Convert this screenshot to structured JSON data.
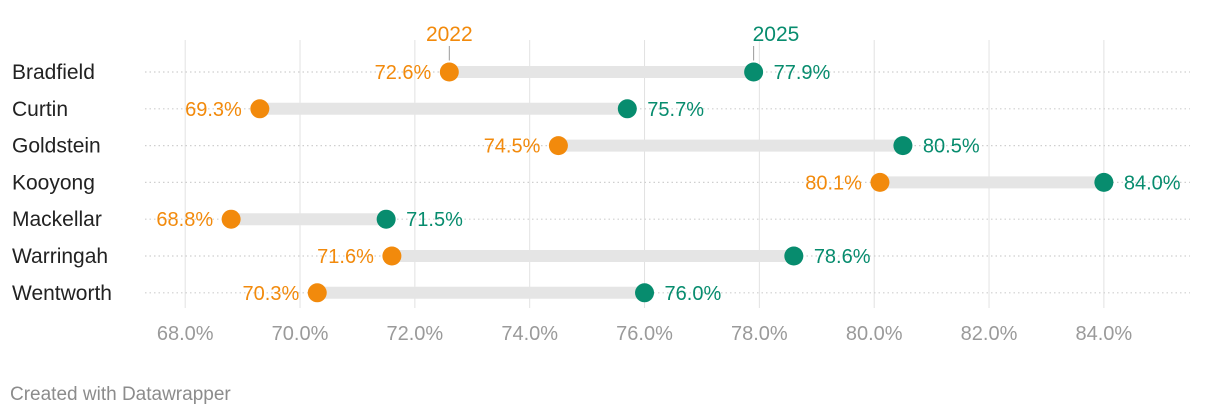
{
  "chart_data": {
    "type": "dot-range",
    "title": "",
    "series": [
      {
        "name": "2022",
        "color": "#f28a0c"
      },
      {
        "name": "2025",
        "color": "#078c6e"
      }
    ],
    "categories": [
      "Bradfield",
      "Curtin",
      "Goldstein",
      "Kooyong",
      "Mackellar",
      "Warringah",
      "Wentworth"
    ],
    "values_2022": [
      72.6,
      69.3,
      74.5,
      80.1,
      68.8,
      71.6,
      70.3
    ],
    "values_2025": [
      77.9,
      75.7,
      80.5,
      84.0,
      71.5,
      78.6,
      76.0
    ],
    "labels_2022": [
      "72.6%",
      "69.3%",
      "74.5%",
      "80.1%",
      "68.8%",
      "71.6%",
      "70.3%"
    ],
    "labels_2025": [
      "77.9%",
      "75.7%",
      "80.5%",
      "84.0%",
      "71.5%",
      "78.6%",
      "76.0%"
    ],
    "x_ticks": [
      68,
      70,
      72,
      74,
      76,
      78,
      80,
      82,
      84
    ],
    "x_tick_labels": [
      "68.0%",
      "70.0%",
      "72.0%",
      "74.0%",
      "76.0%",
      "78.0%",
      "80.0%",
      "82.0%",
      "84.0%"
    ],
    "xlim": [
      67.3,
      85.5
    ],
    "grid": true,
    "range_bar_color": "#e5e5e5",
    "grid_color": "#e2e2e2",
    "dotted_line_color": "#cfcfcf"
  },
  "footer": {
    "credit": "Created with Datawrapper"
  }
}
